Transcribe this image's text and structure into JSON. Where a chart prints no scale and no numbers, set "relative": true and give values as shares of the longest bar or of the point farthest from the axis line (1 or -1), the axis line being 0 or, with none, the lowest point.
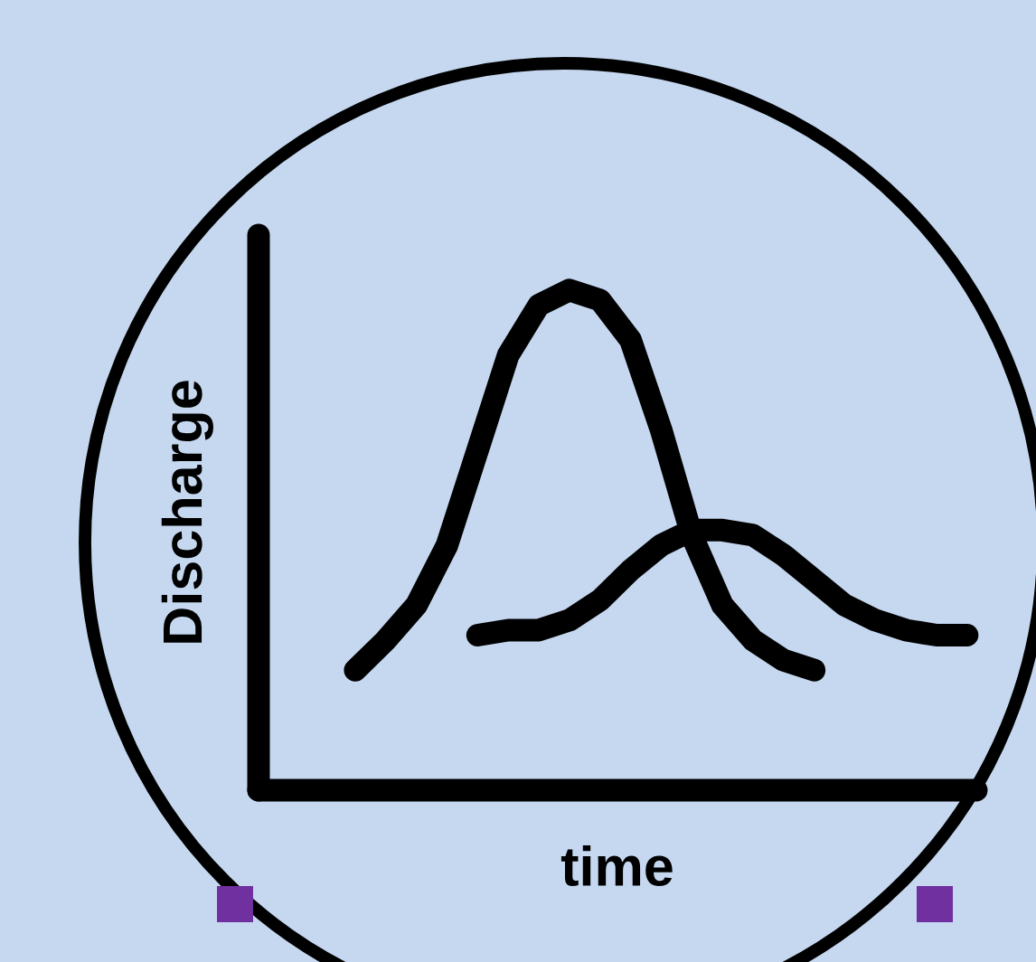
{
  "chart_data": {
    "type": "line",
    "relative": true,
    "xlabel": "time",
    "ylabel": "Discharge",
    "line_style": "solid",
    "categories": [
      null,
      null,
      null,
      null,
      null,
      null,
      null,
      null,
      null,
      null,
      null,
      null,
      null,
      null,
      null,
      null,
      null,
      null,
      null,
      null,
      null
    ],
    "series": [
      {
        "color": "#000000",
        "values": [
          0.24,
          0.3,
          0.37,
          0.49,
          0.68,
          0.87,
          0.97,
          1.0,
          0.98,
          0.9,
          0.72,
          0.51,
          0.37,
          0.3,
          0.26,
          0.24,
          null,
          null,
          null,
          null,
          null
        ]
      },
      {
        "color": "#000000",
        "values": [
          null,
          null,
          null,
          null,
          0.31,
          0.32,
          0.32,
          0.34,
          0.38,
          0.44,
          0.49,
          0.52,
          0.52,
          0.51,
          0.47,
          0.42,
          0.37,
          0.34,
          0.32,
          0.31,
          0.31
        ]
      }
    ]
  }
}
